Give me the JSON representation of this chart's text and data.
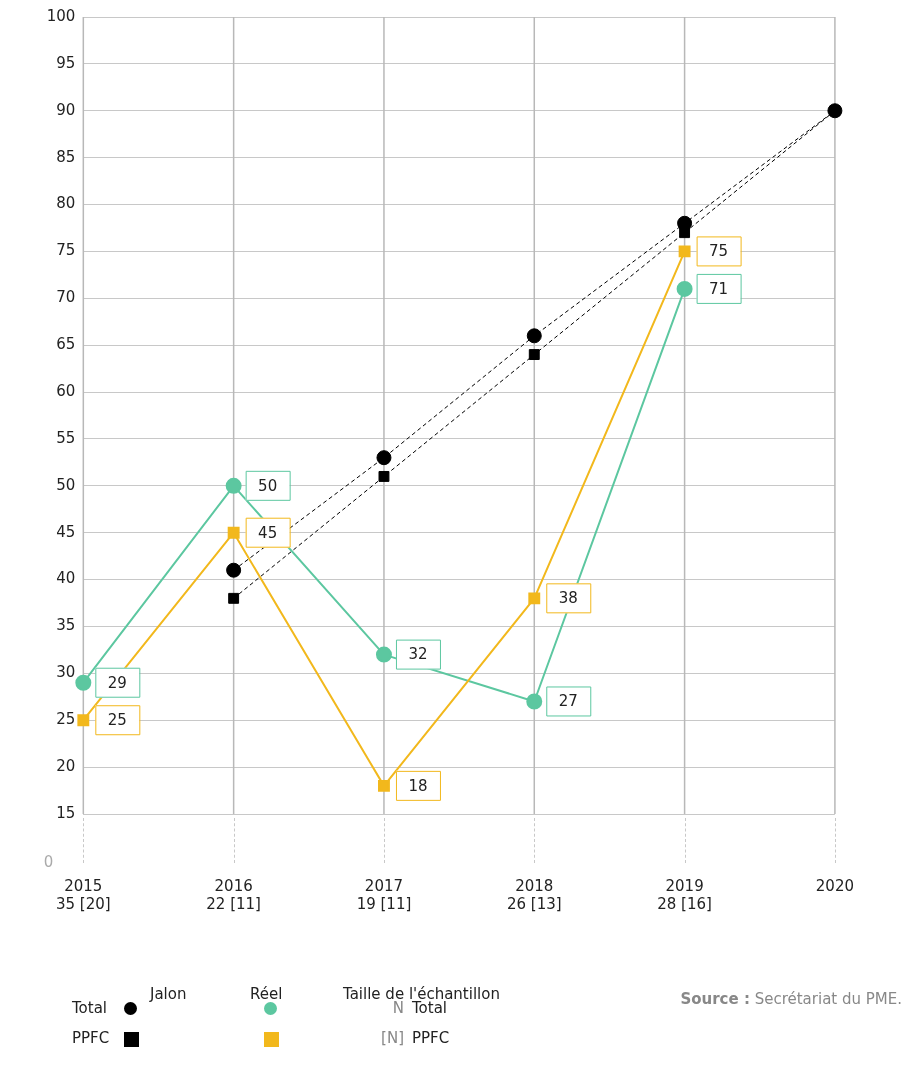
{
  "chart_data": {
    "type": "line",
    "categories": [
      "2015\n35 [20]",
      "2016\n22 [11]",
      "2017\n19 [11]",
      "2018\n26 [13]",
      "2019\n28 [16]",
      "2020"
    ],
    "series": [
      {
        "name": "Total",
        "color": "#000000",
        "marker": "circle",
        "line_style": "dashed",
        "values": [
          null,
          41,
          53,
          66,
          78,
          90
        ]
      },
      {
        "name": "PPFC",
        "color": "#000000",
        "marker": "square",
        "line_style": "dashed",
        "values": [
          null,
          38,
          51,
          64,
          77,
          90
        ]
      },
      {
        "color": "#5cc7a0",
        "marker": "circle",
        "line_style": "solid",
        "values": [
          29,
          50,
          32,
          27,
          71,
          null
        ],
        "value_labels": [
          "29",
          "50",
          "32",
          "27",
          "71",
          null
        ]
      },
      {
        "color": "#f2b81c",
        "marker": "square",
        "line_style": "solid",
        "values": [
          25,
          45,
          18,
          38,
          75,
          null
        ],
        "value_labels": [
          "25",
          "45",
          "18",
          "38",
          "75",
          null
        ]
      }
    ],
    "ylim": [
      15,
      100
    ],
    "yticks": [
      15,
      20,
      25,
      30,
      35,
      40,
      45,
      50,
      55,
      60,
      65,
      70,
      75,
      80,
      85,
      90,
      95,
      100
    ],
    "grid": true,
    "legend": "bottom",
    "annotations": [
      "0",
      "Jalon",
      "Réel",
      "Taille de l'échantillon",
      "N",
      "Total",
      "[N]",
      "PPFC",
      "Source : Secrétariat du PME."
    ]
  }
}
